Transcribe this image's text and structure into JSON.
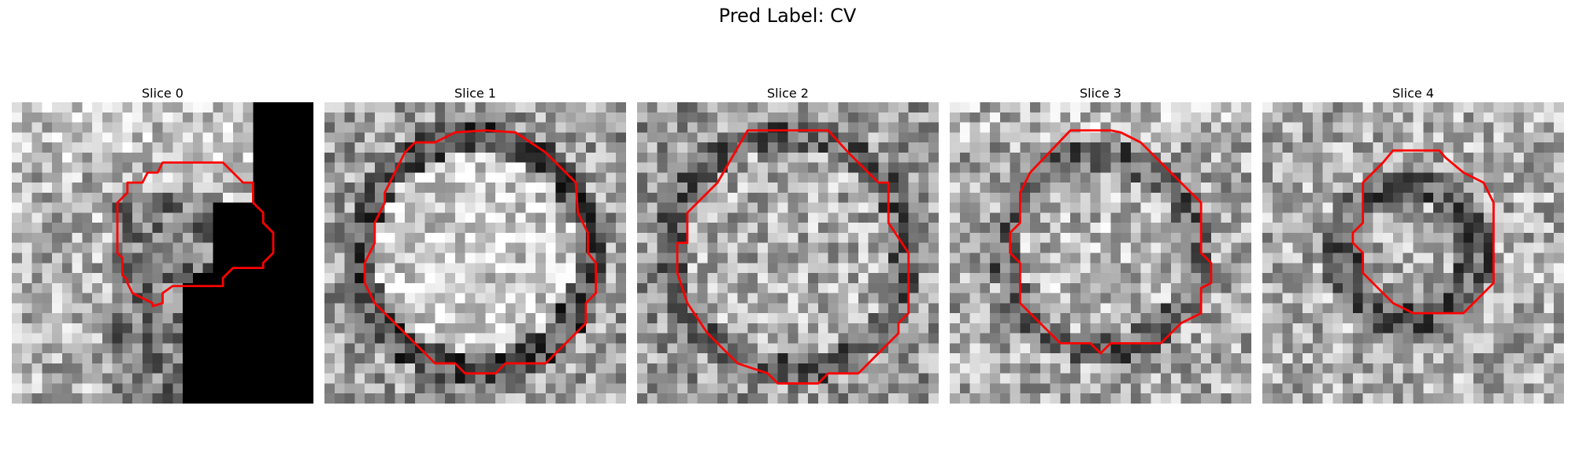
{
  "figure": {
    "title": "Pred Label: CV",
    "contour_color": "#ff0000",
    "image_colormap": "gray"
  },
  "slices": [
    {
      "title": "Slice 0"
    },
    {
      "title": "Slice 1"
    },
    {
      "title": "Slice 2"
    },
    {
      "title": "Slice 3"
    },
    {
      "title": "Slice 4"
    }
  ]
}
